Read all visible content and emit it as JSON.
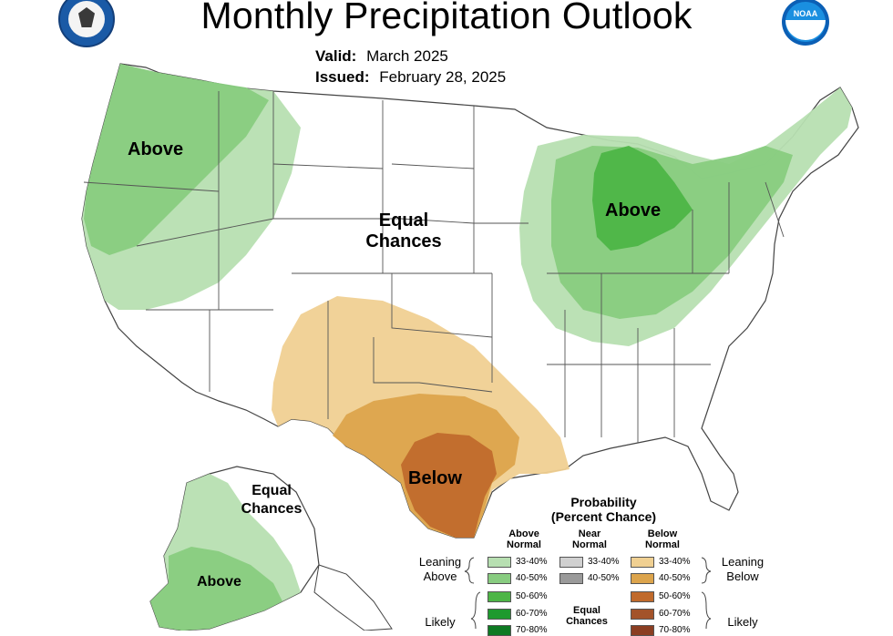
{
  "title": "Monthly Precipitation Outlook",
  "valid": {
    "label": "Valid:",
    "value": "March 2025"
  },
  "issued": {
    "label": "Issued:",
    "value": "February 28, 2025"
  },
  "logos": {
    "left": "department-of-commerce-seal-icon",
    "right": "noaa-logo-icon"
  },
  "map_labels": {
    "northwest": "Above",
    "center_line1": "Equal",
    "center_line2": "Chances",
    "great_lakes": "Above",
    "texas": "Below",
    "alaska_ec_line1": "Equal",
    "alaska_ec_line2": "Chances",
    "alaska_above": "Above"
  },
  "legend": {
    "title_line1": "Probability",
    "title_line2": "(Percent Chance)",
    "above_head": [
      "Above",
      "Normal"
    ],
    "near_head": [
      "Near",
      "Normal"
    ],
    "below_head": [
      "Below",
      "Normal"
    ],
    "leaning_above": [
      "Leaning",
      "Above"
    ],
    "leaning_below": [
      "Leaning",
      "Below"
    ],
    "likely_left": "Likely",
    "likely_right": "Likely",
    "equal_chances": [
      "Equal",
      "Chances"
    ],
    "above": [
      {
        "label": "33-40%",
        "color": "#b7dfb1"
      },
      {
        "label": "40-50%",
        "color": "#88cc80"
      },
      {
        "label": "50-60%",
        "color": "#4db546"
      },
      {
        "label": "60-70%",
        "color": "#1e9a2e"
      },
      {
        "label": "70-80%",
        "color": "#0e7a23"
      }
    ],
    "near": [
      {
        "label": "33-40%",
        "color": "#d0d0d0"
      },
      {
        "label": "40-50%",
        "color": "#9a9a9a"
      }
    ],
    "below": [
      {
        "label": "33-40%",
        "color": "#f0d092"
      },
      {
        "label": "40-50%",
        "color": "#dca44c"
      },
      {
        "label": "50-60%",
        "color": "#c06a2c"
      },
      {
        "label": "60-70%",
        "color": "#a3532a"
      },
      {
        "label": "70-80%",
        "color": "#8b3e22"
      }
    ]
  },
  "colors": {
    "above_33_40": "#b7dfb1",
    "above_40_50": "#88cc80",
    "above_50_60": "#4db546",
    "below_33_40": "#f0d092",
    "below_40_50": "#dca44c",
    "below_50_60": "#c06a2c",
    "state_lines": "#555555"
  }
}
